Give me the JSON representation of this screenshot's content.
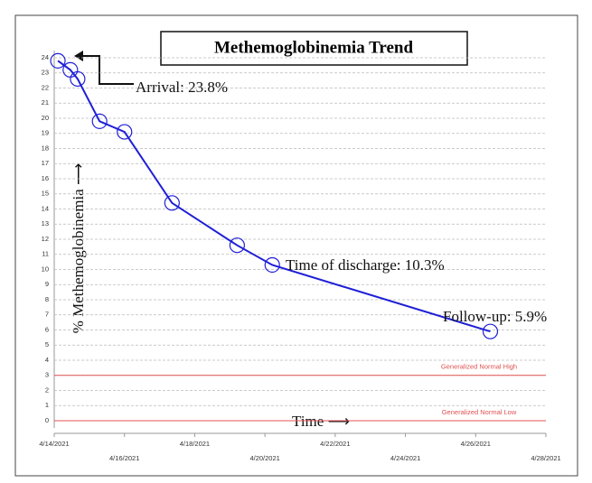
{
  "chart_data": {
    "type": "line",
    "title": "Methemoglobinemia Trend",
    "y_label": "% Methemoglobinemia ⟶",
    "x_label": "Time ⟶",
    "x": [
      "2021-04-14T02:30",
      "2021-04-14T11:00",
      "2021-04-14T16:00",
      "2021-04-15T07:00",
      "2021-04-16T00:00",
      "2021-04-17T08:30",
      "2021-04-19T05:00",
      "2021-04-20T05:00",
      "2021-04-26T10:00"
    ],
    "series": [
      {
        "name": "% Methemoglobinemia",
        "color": "#1f1fd6",
        "values": [
          23.8,
          23.2,
          22.6,
          19.8,
          19.1,
          14.4,
          11.6,
          10.3,
          5.9
        ]
      }
    ],
    "annotations": [
      "Arrival: 23.8%",
      "Time of discharge: 10.3%",
      "Follow-up: 5.9%"
    ],
    "reference_lines": [
      {
        "value": 3,
        "label": "Generalized Normal High",
        "color": "#e05050"
      },
      {
        "value": 0,
        "label": "Generalized Normal Low",
        "color": "#e05050"
      }
    ],
    "xlim": [
      "2021-04-14",
      "2021-04-28"
    ],
    "xticks": [
      {
        "value": "2021-04-14",
        "label": "4/14/2021"
      },
      {
        "value": "2021-04-16",
        "label": "4/16/2021"
      },
      {
        "value": "2021-04-18",
        "label": "4/18/2021"
      },
      {
        "value": "2021-04-20",
        "label": "4/20/2021"
      },
      {
        "value": "2021-04-22",
        "label": "4/22/2021"
      },
      {
        "value": "2021-04-24",
        "label": "4/24/2021"
      },
      {
        "value": "2021-04-26",
        "label": "4/26/2021"
      },
      {
        "value": "2021-04-28",
        "label": "4/28/2021"
      }
    ],
    "ylim": [
      0,
      24
    ],
    "yticks": [
      0,
      1,
      2,
      3,
      4,
      5,
      6,
      7,
      8,
      9,
      10,
      11,
      12,
      13,
      14,
      15,
      16,
      17,
      18,
      19,
      20,
      21,
      22,
      23,
      24
    ],
    "grid": true
  }
}
